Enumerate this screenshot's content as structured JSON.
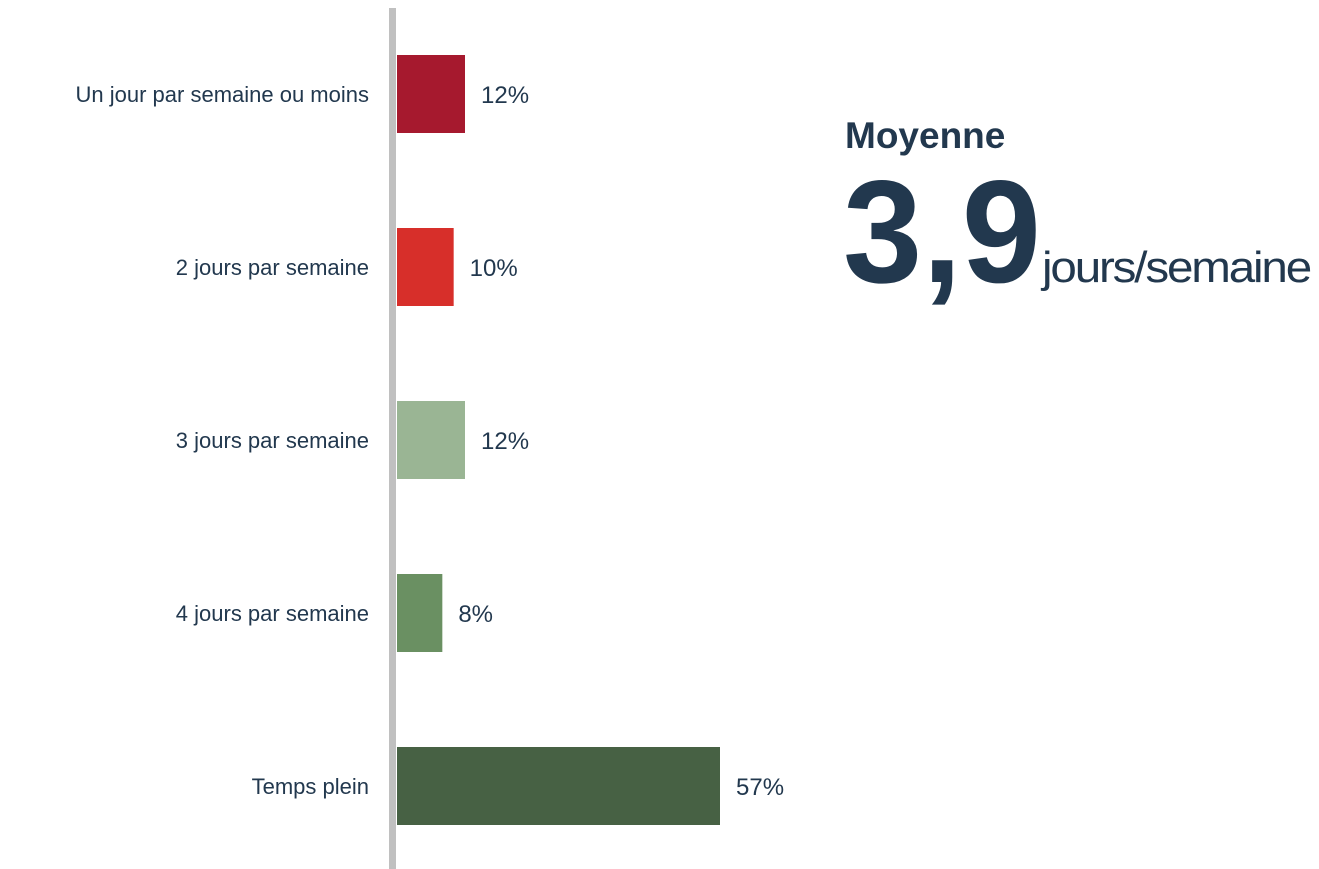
{
  "chart_data": {
    "type": "bar",
    "orientation": "horizontal",
    "categories": [
      "Un jour par semaine ou moins",
      "2 jours par semaine",
      "3 jours par semaine",
      "4 jours par semaine",
      "Temps plein"
    ],
    "values": [
      12,
      10,
      12,
      8,
      57
    ],
    "value_labels": [
      "12%",
      "10%",
      "12%",
      "8%",
      "57%"
    ],
    "colors": [
      "#a6192e",
      "#d72f2a",
      "#9ab594",
      "#6a9062",
      "#476144"
    ],
    "annotation": {
      "title": "Moyenne",
      "value": "3,9",
      "unit": "jours/semaine"
    }
  }
}
